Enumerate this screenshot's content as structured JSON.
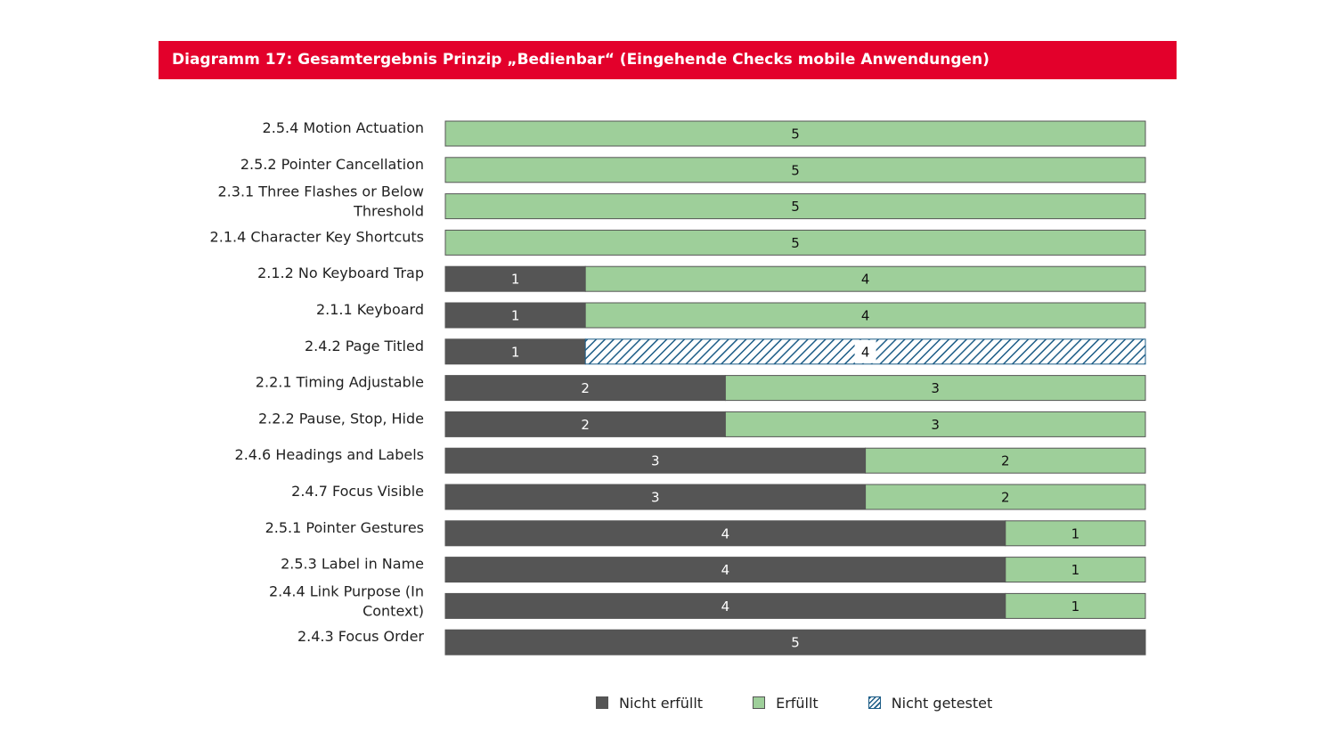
{
  "title": "Diagramm 17: Gesamtergebnis Prinzip „Bedienbar“ (Eingehende Checks mobile Anwendungen)",
  "legend": {
    "not_fulfilled": "Nicht erfüllt",
    "fulfilled": "Erfüllt",
    "not_tested": "Nicht getestet"
  },
  "colors": {
    "not_fulfilled": "#555555",
    "fulfilled": "#9ecf9a",
    "not_tested": "#1d5d87",
    "banner": "#e3002b"
  },
  "chart_data": {
    "type": "bar",
    "orientation": "horizontal",
    "stacked": true,
    "title": "Diagramm 17: Gesamtergebnis Prinzip „Bedienbar“ (Eingehende Checks mobile Anwendungen)",
    "xlim": [
      0,
      5
    ],
    "grid": false,
    "legend_position": "bottom",
    "categories": [
      "2.5.4 Motion Actuation",
      "2.5.2 Pointer Cancellation",
      "2.3.1 Three Flashes or Below Threshold",
      "2.1.4 Character Key Shortcuts",
      "2.1.2 No Keyboard Trap",
      "2.1.1 Keyboard",
      "2.4.2 Page Titled",
      "2.2.1 Timing Adjustable",
      "2.2.2 Pause, Stop, Hide",
      "2.4.6 Headings and Labels",
      "2.4.7 Focus Visible",
      "2.5.1 Pointer Gestures",
      "2.5.3 Label in Name",
      "2.4.4 Link Purpose (In Context)",
      "2.4.3 Focus Order"
    ],
    "series": [
      {
        "name": "Nicht erfüllt",
        "values": [
          0,
          0,
          0,
          0,
          1,
          1,
          1,
          2,
          2,
          3,
          3,
          4,
          4,
          4,
          5
        ]
      },
      {
        "name": "Erfüllt",
        "values": [
          5,
          5,
          5,
          5,
          4,
          4,
          0,
          3,
          3,
          2,
          2,
          1,
          1,
          1,
          0
        ]
      },
      {
        "name": "Nicht getestet",
        "values": [
          0,
          0,
          0,
          0,
          0,
          0,
          4,
          0,
          0,
          0,
          0,
          0,
          0,
          0,
          0
        ]
      }
    ]
  }
}
